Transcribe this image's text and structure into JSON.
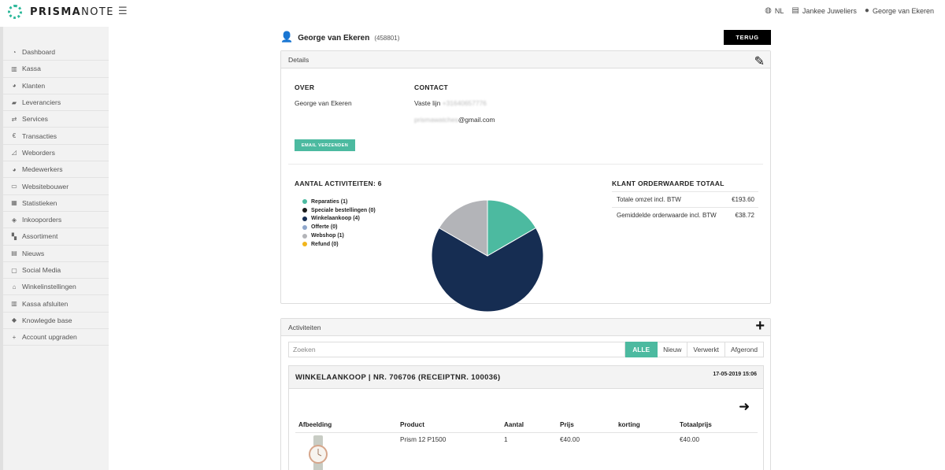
{
  "brand": {
    "logo_text_a": "PRISMA",
    "logo_text_b": "NOTE"
  },
  "topbar": {
    "language": "NL",
    "shop": "Jankee Juweliers",
    "user": "George van Ekeren"
  },
  "sidebar": {
    "items": [
      {
        "label": "Dashboard",
        "icon": "dashboard-icon"
      },
      {
        "label": "Kassa",
        "icon": "cash-register-icon"
      },
      {
        "label": "Klanten",
        "icon": "users-icon"
      },
      {
        "label": "Leveranciers",
        "icon": "truck-icon"
      },
      {
        "label": "Services",
        "icon": "exchange-icon"
      },
      {
        "label": "Transacties",
        "icon": "euro-icon"
      },
      {
        "label": "Weborders",
        "icon": "chart-icon"
      },
      {
        "label": "Medewerkers",
        "icon": "users-icon"
      },
      {
        "label": "Websitebouwer",
        "icon": "monitor-icon"
      },
      {
        "label": "Statistieken",
        "icon": "bar-chart-icon"
      },
      {
        "label": "Inkooporders",
        "icon": "handshake-icon"
      },
      {
        "label": "Assortiment",
        "icon": "sitemap-icon"
      },
      {
        "label": "Nieuws",
        "icon": "newspaper-icon"
      },
      {
        "label": "Social Media",
        "icon": "calendar-icon"
      },
      {
        "label": "Winkelinstellingen",
        "icon": "home-icon"
      },
      {
        "label": "Kassa afsluiten",
        "icon": "cash-register-icon"
      },
      {
        "label": "Knowlegde base",
        "icon": "graduation-icon"
      },
      {
        "label": "Account upgraden",
        "icon": "plus-icon"
      }
    ]
  },
  "header": {
    "name": "George van Ekeren",
    "id": "(458801)",
    "back_button": "TERUG"
  },
  "details": {
    "title": "Details",
    "over_title": "OVER",
    "over_name": "George van Ekeren",
    "email_button": "EMAIL VERZENDEN",
    "contact_title": "CONTACT",
    "phone_label": "Vaste lijn",
    "phone_value": "+31640657776",
    "email_user": "prismawatches",
    "email_domain": "@gmail.com",
    "activities_title": "AANTAL ACTIVITEITEN: 6",
    "totals_title": "KLANT ORDERWAARDE TOTAAL",
    "totals": [
      {
        "label": "Totale omzet incl. BTW",
        "value": "€193.60"
      },
      {
        "label": "Gemiddelde orderwaarde incl. BTW",
        "value": "€38.72"
      }
    ]
  },
  "chart_data": {
    "type": "pie",
    "title": "",
    "slices": [
      {
        "label": "Reparaties (1)",
        "value": 1,
        "color": "#4cbaa0"
      },
      {
        "label": "Speciale bestellingen (0)",
        "value": 0,
        "color": "#1a1a1a"
      },
      {
        "label": "Winkelaankoop (4)",
        "value": 4,
        "color": "#162d52"
      },
      {
        "label": "Offerte (0)",
        "value": 0,
        "color": "#8fa7cc"
      },
      {
        "label": "Webshop (1)",
        "value": 1,
        "color": "#b3b4b8"
      },
      {
        "label": "Refund (0)",
        "value": 0,
        "color": "#f1b51c"
      }
    ]
  },
  "activities": {
    "title": "Activiteiten",
    "search_placeholder": "Zoeken",
    "filters": [
      "ALLE",
      "Nieuw",
      "Verwerkt",
      "Afgerond"
    ],
    "order": {
      "title": "WINKELAANKOOP | NR. 706706 (RECEIPTNR. 100036)",
      "date": "17-05-2019 15:06",
      "columns": [
        "Afbeelding",
        "Product",
        "Aantal",
        "Prijs",
        "korting",
        "Totaalprijs"
      ],
      "row": {
        "product": "Prism 12 P1500",
        "aantal": "1",
        "prijs": "€40.00",
        "korting": "",
        "totaal": "€40.00"
      }
    }
  }
}
